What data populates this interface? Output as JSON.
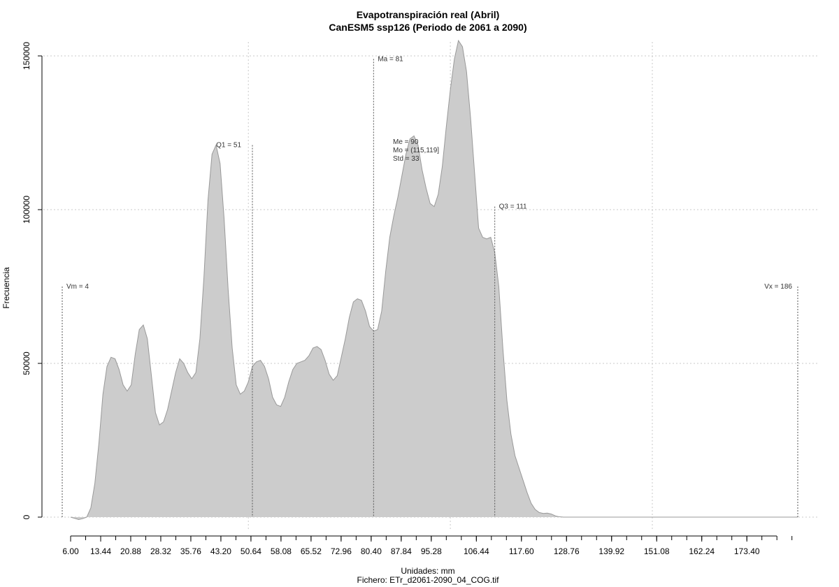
{
  "chart_data": {
    "type": "area",
    "title": "Evapotranspiración real (Abril)",
    "subtitle": "CanESM5 ssp126 (Periodo de 2061 a 2090)",
    "xlabel": "Unidades: mm",
    "caption": "Fichero: ETr_d2061-2090_04_COG.tif",
    "ylabel": "Frecuencia",
    "xlim": [
      6,
      186
    ],
    "ylim": [
      0,
      155000
    ],
    "x_ticks": [
      "6.00",
      "13.44",
      "20.88",
      "28.32",
      "35.76",
      "43.20",
      "50.64",
      "58.08",
      "65.52",
      "72.96",
      "80.40",
      "87.84",
      "95.28",
      "106.44",
      "117.60",
      "128.76",
      "139.92",
      "151.08",
      "162.24",
      "173.40"
    ],
    "x_tick_values": [
      6.0,
      13.44,
      20.88,
      28.32,
      35.76,
      43.2,
      50.64,
      58.08,
      65.52,
      72.96,
      80.4,
      87.84,
      95.28,
      106.44,
      117.6,
      128.76,
      139.92,
      151.08,
      162.24,
      173.4
    ],
    "y_ticks": [
      0,
      50000,
      100000,
      150000
    ],
    "grid": true,
    "fill_color": "#cccccc",
    "line_color": "#999999",
    "series": [
      {
        "x": [
          6,
          8,
          9,
          10,
          11,
          12,
          13,
          14,
          15,
          16,
          17,
          18,
          19,
          20,
          21,
          22,
          23,
          24,
          25,
          26,
          27,
          28,
          29,
          30,
          31,
          32,
          33,
          34,
          35,
          36,
          37,
          38,
          39,
          40,
          41,
          42,
          43,
          44,
          45,
          46,
          47,
          48,
          49,
          50,
          51,
          52,
          53,
          54,
          55,
          56,
          57,
          58,
          59,
          60,
          61,
          62,
          63,
          64,
          65,
          66,
          67,
          68,
          69,
          70,
          71,
          72,
          73,
          74,
          75,
          76,
          77,
          78,
          79,
          80,
          81,
          82,
          83,
          84,
          85,
          86,
          87,
          88,
          89,
          90,
          91,
          92,
          93,
          94,
          95,
          96,
          97,
          98,
          99,
          100,
          101,
          102,
          103,
          104,
          105,
          106,
          107,
          108,
          109,
          110,
          111,
          112,
          113,
          114,
          115,
          116,
          117,
          118,
          119,
          120,
          121,
          122,
          123,
          124,
          125,
          126,
          127,
          128,
          129,
          130,
          131,
          132,
          133,
          134,
          135,
          136,
          137,
          138,
          140,
          142,
          144,
          146,
          150,
          160,
          170,
          180,
          186
        ],
        "y": [
          0,
          -800,
          -500,
          0,
          3000,
          11000,
          24000,
          40000,
          49000,
          52000,
          51500,
          48000,
          43000,
          41000,
          43000,
          53000,
          61000,
          62500,
          58000,
          46000,
          34000,
          30000,
          31000,
          35000,
          41000,
          47000,
          51500,
          50000,
          47000,
          45000,
          47000,
          58000,
          78000,
          103000,
          118000,
          121000,
          115000,
          97000,
          74000,
          55000,
          43000,
          40000,
          41000,
          44000,
          49000,
          50500,
          51000,
          49000,
          45000,
          39000,
          36500,
          36000,
          39000,
          44000,
          48000,
          50000,
          50500,
          51000,
          52500,
          55000,
          55500,
          54500,
          51000,
          46500,
          44500,
          46000,
          52000,
          58000,
          65000,
          70000,
          71000,
          70500,
          67000,
          62000,
          60500,
          61000,
          67000,
          80000,
          91000,
          98000,
          104000,
          111000,
          118000,
          123000,
          124000,
          121000,
          113000,
          107000,
          102000,
          101000,
          105000,
          114000,
          127000,
          139000,
          149000,
          155000,
          153000,
          145000,
          130000,
          112000,
          94000,
          91000,
          90500,
          91000,
          86000,
          75000,
          55000,
          38000,
          27000,
          20000,
          16000,
          12000,
          8000,
          4500,
          2500,
          1500,
          1200,
          1300,
          1000,
          400,
          100,
          0,
          0,
          0,
          0,
          0,
          0,
          0,
          0,
          0,
          0,
          0,
          0,
          0,
          0,
          0,
          0,
          0,
          0,
          0,
          0
        ]
      }
    ],
    "ref_lines": [
      {
        "label": "Vm = 4",
        "x": 4,
        "y_top": 75000
      },
      {
        "label": "Q1 = 51",
        "x": 51,
        "y_top": 121000
      },
      {
        "label": "Ma = 81",
        "x": 81,
        "y_top": 149000
      },
      {
        "label": "Q3 = 111",
        "x": 111,
        "y_top": 101000
      },
      {
        "label": "Vx = 186",
        "x": 186,
        "y_top": 75000
      }
    ],
    "stats": {
      "me": "Me = 90",
      "mo": "Mo = (115,119]",
      "std": "Std = 33"
    }
  }
}
